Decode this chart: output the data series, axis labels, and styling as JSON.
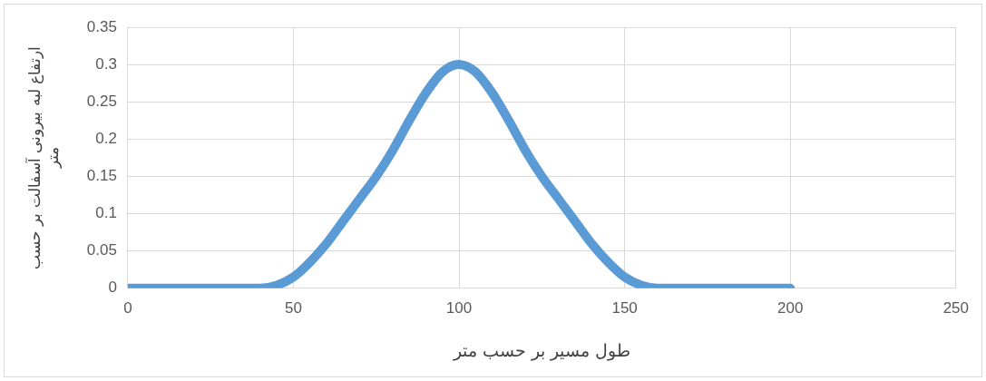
{
  "chart_data": {
    "type": "line",
    "xlabel": "طول مسیر بر حسب متر",
    "ylabel": "ارتفاع لبه بیرونی آسفالت بر حسب متر",
    "x": [
      0,
      10,
      20,
      30,
      40,
      45,
      50,
      55,
      60,
      65,
      70,
      75,
      80,
      85,
      90,
      95,
      100,
      105,
      110,
      115,
      120,
      125,
      130,
      135,
      140,
      145,
      150,
      155,
      160,
      170,
      180,
      190,
      200
    ],
    "series": [
      {
        "color": "#5b9bd5",
        "values": [
          0,
          0,
          0,
          0,
          0,
          0.004,
          0.015,
          0.035,
          0.06,
          0.09,
          0.12,
          0.15,
          0.185,
          0.225,
          0.262,
          0.29,
          0.3,
          0.29,
          0.262,
          0.225,
          0.185,
          0.15,
          0.12,
          0.09,
          0.06,
          0.035,
          0.015,
          0.004,
          0,
          0,
          0,
          0,
          0
        ]
      }
    ],
    "xlim": [
      0,
      250
    ],
    "xticks": [
      0,
      50,
      100,
      150,
      200,
      250
    ],
    "ylim": [
      0,
      0.35
    ],
    "yticks": [
      0,
      0.05,
      0.1,
      0.15,
      0.2,
      0.25,
      0.3,
      0.35
    ],
    "grid": true,
    "legend": false,
    "marker": "none",
    "line_style": "solid"
  }
}
